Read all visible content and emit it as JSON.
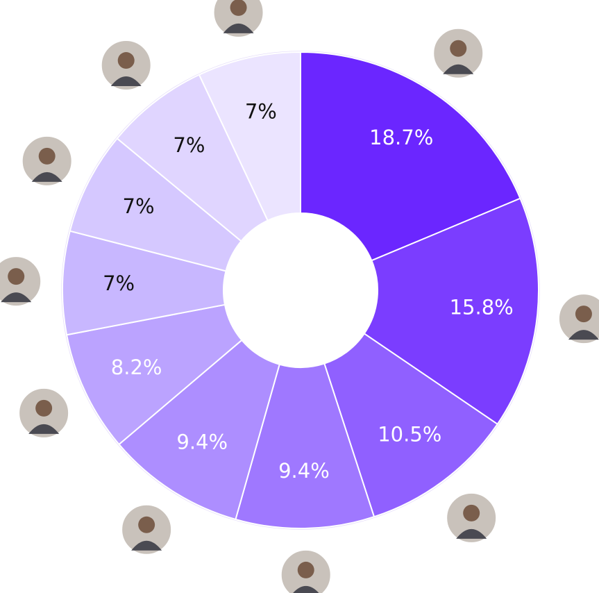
{
  "chart_data": {
    "type": "donut",
    "values": [
      18.7,
      15.8,
      10.5,
      9.4,
      9.4,
      8.2,
      7,
      7,
      7,
      7
    ],
    "value_labels": [
      "18.7%",
      "15.8%",
      "10.5%",
      "9.4%",
      "9.4%",
      "8.2%",
      "7%",
      "7%",
      "7%",
      "7%"
    ],
    "colors": [
      "#6b26ff",
      "#7b3dff",
      "#9060ff",
      "#9f78ff",
      "#ad8eff",
      "#bba3ff",
      "#c8b7ff",
      "#d5c8ff",
      "#e0d5ff",
      "#ebe4ff"
    ]
  }
}
